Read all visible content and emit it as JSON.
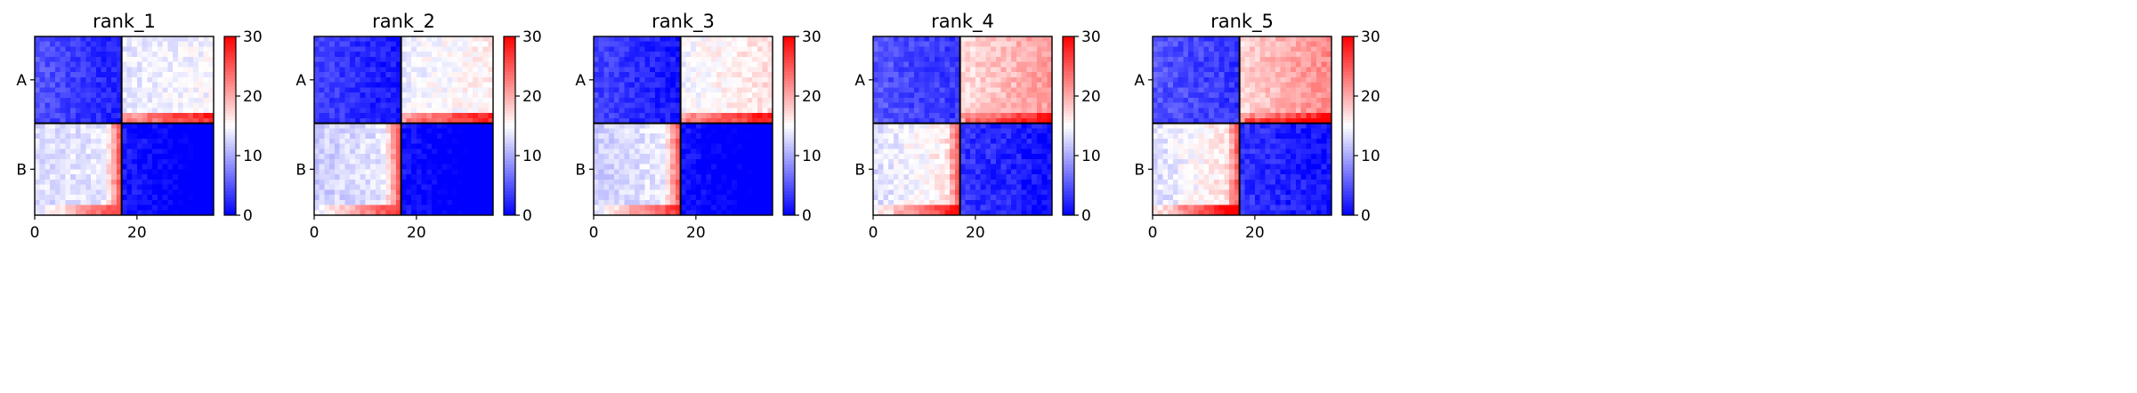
{
  "chart_data": {
    "type": "heatmap",
    "panels": [
      {
        "title": "rank_1",
        "map": {
          "intra_start": 5,
          "intra_end": -2,
          "cross_start": 13,
          "cross_end": 14.5,
          "edge_tail": 27,
          "noise": 1.6
        }
      },
      {
        "title": "rank_2",
        "map": {
          "intra_start": 4,
          "intra_end": -2,
          "cross_start": 12,
          "cross_end": 16,
          "edge_tail": 28,
          "noise": 1.6
        }
      },
      {
        "title": "rank_3",
        "map": {
          "intra_start": 4,
          "intra_end": -2,
          "cross_start": 12,
          "cross_end": 17,
          "edge_tail": 28,
          "noise": 1.6
        }
      },
      {
        "title": "rank_4",
        "map": {
          "intra_start": 5,
          "intra_end": 1,
          "cross_start": 13,
          "cross_end": 21,
          "edge_tail": 30,
          "noise": 1.8
        }
      },
      {
        "title": "rank_5",
        "map": {
          "intra_start": 5,
          "intra_end": 1,
          "cross_start": 13,
          "cross_end": 22,
          "edge_tail": 32,
          "noise": 1.8
        }
      }
    ],
    "n_cells": 35,
    "block_boundary": 17,
    "row_groups": [
      "A",
      "B"
    ],
    "x_ticks": [
      0,
      20
    ],
    "xlim": [
      0,
      35
    ],
    "colorbar": {
      "vmin": 0,
      "vmax": 30,
      "ticks": [
        0,
        10,
        20,
        30
      ],
      "colormap": "bwr",
      "colors": [
        "#0000ff",
        "#ffffff",
        "#ff0000"
      ]
    },
    "grid": false,
    "legend": "none"
  }
}
